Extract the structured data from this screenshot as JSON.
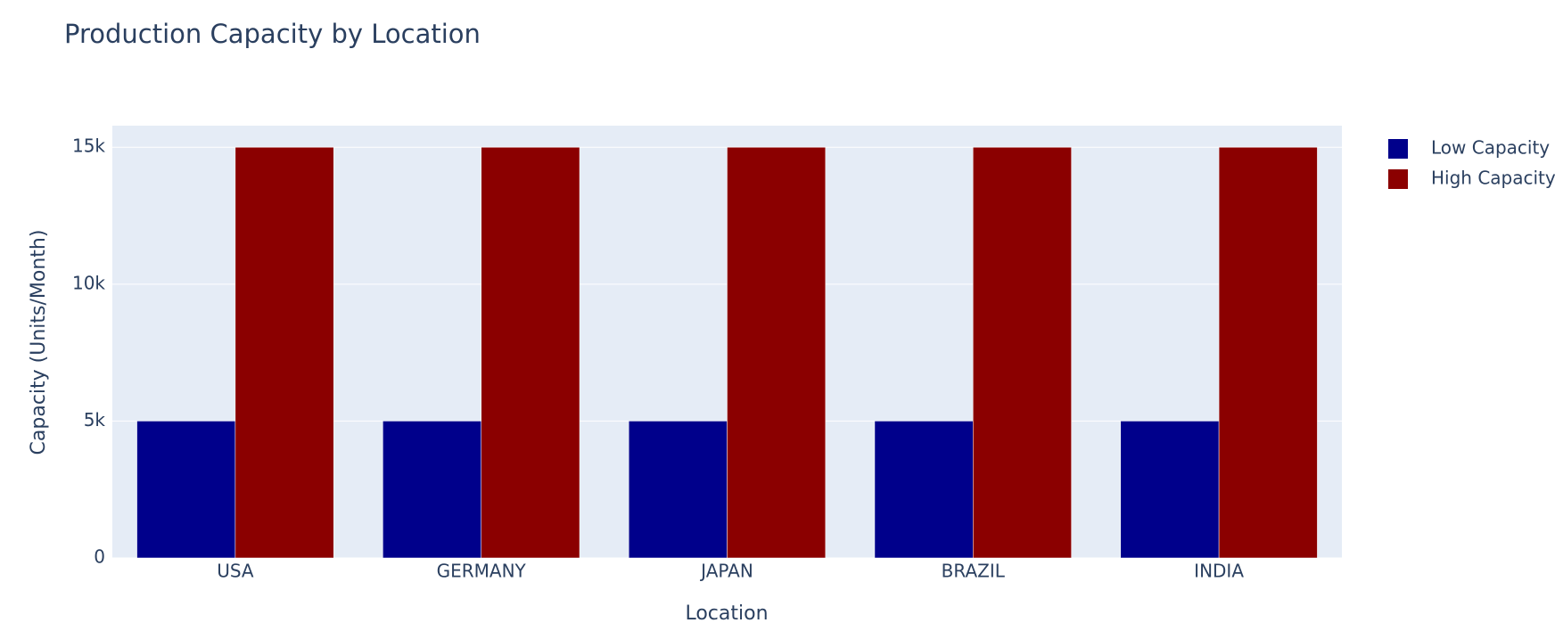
{
  "chart_data": {
    "type": "bar",
    "title": "Production Capacity by Location",
    "x_label": "Location",
    "y_label": "Capacity (Units/Month)",
    "categories": [
      "USA",
      "GERMANY",
      "JAPAN",
      "BRAZIL",
      "INDIA"
    ],
    "series": [
      {
        "name": "Low Capacity",
        "color": "#00008b",
        "values": [
          5000,
          5000,
          5000,
          5000,
          5000
        ]
      },
      {
        "name": "High Capacity",
        "color": "#8b0000",
        "values": [
          15000,
          15000,
          15000,
          15000,
          15000
        ]
      }
    ],
    "ylim": [
      0,
      15789
    ],
    "yticks": [
      0,
      {
        "value": 5000,
        "label": "5k"
      },
      {
        "value": 10000,
        "label": "10k"
      },
      {
        "value": 15000,
        "label": "15k"
      }
    ],
    "grid": true,
    "legend": "right"
  }
}
